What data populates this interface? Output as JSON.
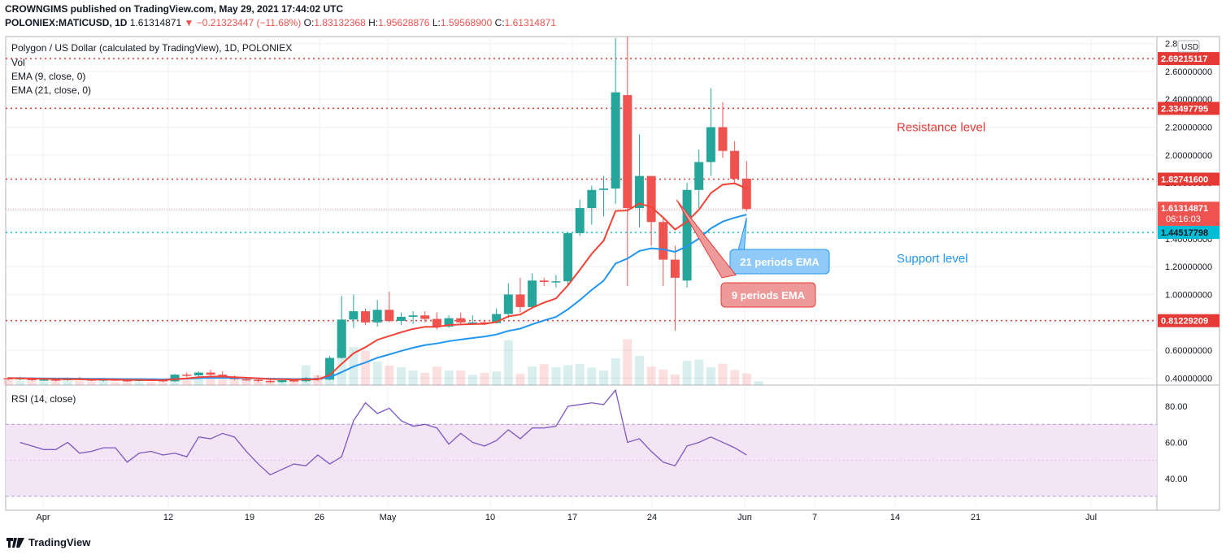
{
  "header": {
    "publisher_line": "CROWNGIMS published on TradingView.com, May 29, 2021 17:44:02 UTC",
    "symbol": "POLONIEX:MATICUSD, 1D",
    "last": "1.61314871",
    "change": "▼ −0.21323447 (−11.68%)",
    "o_label": "O:",
    "o": "1.83132368",
    "h_label": "H:",
    "h": "1.95628876",
    "l_label": "L:",
    "l": "1.59568900",
    "c_label": "C:",
    "c": "1.61314871"
  },
  "legend": {
    "title": "Polygon / US Dollar (calculated by TradingView), 1D, POLONIEX",
    "vol": "Vol",
    "ema9": "EMA (9, close, 0)",
    "ema21": "EMA (21, close, 0)",
    "rsi": "RSI (14, close)"
  },
  "currency_badge": "USD",
  "colors": {
    "up": "#26a69a",
    "down": "#ef5350",
    "ema9": "#f44336",
    "ema21": "#2196f3",
    "resistance": "#e53935",
    "support": "#00bcd4",
    "rsi_line": "#7e57c2",
    "rsi_band": "#f3e5f5"
  },
  "chart_data": [
    {
      "type": "candlestick",
      "name": "MATICUSD 1D",
      "x_ticks": [
        "Apr",
        "12",
        "19",
        "26",
        "May",
        "10",
        "17",
        "24",
        "Jun",
        "7",
        "14",
        "21",
        "Jul"
      ],
      "y_ticks": [
        "0.40000000",
        "0.60000000",
        "0.80000000",
        "1.00000000",
        "1.20000000",
        "1.40000000",
        "1.60000000",
        "1.80000000",
        "2.00000000",
        "2.20000000",
        "2.40000000",
        "2.60000000",
        "2.8"
      ],
      "ylim": [
        0.35,
        2.85
      ],
      "price_labels": {
        "resistance_top": "2.69215117",
        "resistance_upper": "2.33497795",
        "resistance_mid": "1.82741600",
        "current": "1.61314871",
        "countdown": "06:16:03",
        "support": "1.44517798",
        "support_lower": "0.81229209"
      },
      "levels": [
        2.69215117,
        2.33497795,
        1.827416,
        1.44517798,
        0.81229209
      ],
      "current_price": 1.61314871,
      "annotations": {
        "resistance": "Resistance level",
        "support": "Support level",
        "ema21_callout": "21 periods EMA",
        "ema9_callout": "9 periods EMA"
      },
      "candles": [
        {
          "o": 0.4,
          "h": 0.41,
          "l": 0.385,
          "c": 0.395
        },
        {
          "o": 0.395,
          "h": 0.41,
          "l": 0.385,
          "c": 0.4
        },
        {
          "o": 0.4,
          "h": 0.405,
          "l": 0.38,
          "c": 0.385
        },
        {
          "o": 0.385,
          "h": 0.4,
          "l": 0.38,
          "c": 0.39
        },
        {
          "o": 0.39,
          "h": 0.395,
          "l": 0.375,
          "c": 0.385
        },
        {
          "o": 0.385,
          "h": 0.405,
          "l": 0.38,
          "c": 0.395
        },
        {
          "o": 0.395,
          "h": 0.41,
          "l": 0.385,
          "c": 0.39
        },
        {
          "o": 0.39,
          "h": 0.398,
          "l": 0.378,
          "c": 0.383
        },
        {
          "o": 0.383,
          "h": 0.395,
          "l": 0.375,
          "c": 0.39
        },
        {
          "o": 0.39,
          "h": 0.4,
          "l": 0.38,
          "c": 0.385
        },
        {
          "o": 0.385,
          "h": 0.392,
          "l": 0.372,
          "c": 0.38
        },
        {
          "o": 0.38,
          "h": 0.395,
          "l": 0.375,
          "c": 0.388
        },
        {
          "o": 0.388,
          "h": 0.398,
          "l": 0.38,
          "c": 0.385
        },
        {
          "o": 0.385,
          "h": 0.39,
          "l": 0.372,
          "c": 0.378
        },
        {
          "o": 0.378,
          "h": 0.43,
          "l": 0.372,
          "c": 0.425
        },
        {
          "o": 0.425,
          "h": 0.44,
          "l": 0.405,
          "c": 0.42
        },
        {
          "o": 0.42,
          "h": 0.45,
          "l": 0.41,
          "c": 0.44
        },
        {
          "o": 0.44,
          "h": 0.46,
          "l": 0.415,
          "c": 0.425
        },
        {
          "o": 0.425,
          "h": 0.45,
          "l": 0.4,
          "c": 0.41
        },
        {
          "o": 0.41,
          "h": 0.42,
          "l": 0.385,
          "c": 0.392
        },
        {
          "o": 0.392,
          "h": 0.405,
          "l": 0.38,
          "c": 0.388
        },
        {
          "o": 0.388,
          "h": 0.395,
          "l": 0.37,
          "c": 0.38
        },
        {
          "o": 0.38,
          "h": 0.39,
          "l": 0.365,
          "c": 0.372
        },
        {
          "o": 0.372,
          "h": 0.39,
          "l": 0.365,
          "c": 0.385
        },
        {
          "o": 0.385,
          "h": 0.395,
          "l": 0.37,
          "c": 0.378
        },
        {
          "o": 0.378,
          "h": 0.41,
          "l": 0.37,
          "c": 0.402
        },
        {
          "o": 0.402,
          "h": 0.42,
          "l": 0.38,
          "c": 0.39
        },
        {
          "o": 0.39,
          "h": 0.56,
          "l": 0.385,
          "c": 0.545
        },
        {
          "o": 0.545,
          "h": 0.99,
          "l": 0.54,
          "c": 0.82
        },
        {
          "o": 0.82,
          "h": 1.0,
          "l": 0.76,
          "c": 0.88
        },
        {
          "o": 0.88,
          "h": 0.9,
          "l": 0.78,
          "c": 0.8
        },
        {
          "o": 0.8,
          "h": 0.96,
          "l": 0.77,
          "c": 0.89
        },
        {
          "o": 0.89,
          "h": 1.02,
          "l": 0.8,
          "c": 0.81
        },
        {
          "o": 0.81,
          "h": 0.87,
          "l": 0.78,
          "c": 0.84
        },
        {
          "o": 0.84,
          "h": 0.88,
          "l": 0.79,
          "c": 0.85
        },
        {
          "o": 0.85,
          "h": 0.88,
          "l": 0.8,
          "c": 0.825
        },
        {
          "o": 0.825,
          "h": 0.87,
          "l": 0.75,
          "c": 0.77
        },
        {
          "o": 0.77,
          "h": 0.85,
          "l": 0.76,
          "c": 0.83
        },
        {
          "o": 0.83,
          "h": 0.87,
          "l": 0.79,
          "c": 0.8
        },
        {
          "o": 0.8,
          "h": 0.85,
          "l": 0.78,
          "c": 0.8
        },
        {
          "o": 0.8,
          "h": 0.81,
          "l": 0.78,
          "c": 0.795
        },
        {
          "o": 0.795,
          "h": 0.9,
          "l": 0.79,
          "c": 0.86
        },
        {
          "o": 0.86,
          "h": 1.08,
          "l": 0.83,
          "c": 1.0
        },
        {
          "o": 1.0,
          "h": 1.12,
          "l": 0.87,
          "c": 0.91
        },
        {
          "o": 0.91,
          "h": 1.15,
          "l": 0.9,
          "c": 1.1
        },
        {
          "o": 1.1,
          "h": 1.12,
          "l": 1.06,
          "c": 1.09
        },
        {
          "o": 1.09,
          "h": 1.14,
          "l": 1.05,
          "c": 1.095
        },
        {
          "o": 1.095,
          "h": 1.44,
          "l": 1.06,
          "c": 1.44
        },
        {
          "o": 1.44,
          "h": 1.68,
          "l": 1.42,
          "c": 1.62
        },
        {
          "o": 1.62,
          "h": 1.78,
          "l": 1.5,
          "c": 1.75
        },
        {
          "o": 1.75,
          "h": 1.85,
          "l": 1.56,
          "c": 1.76
        },
        {
          "o": 1.76,
          "h": 2.84,
          "l": 1.65,
          "c": 2.45
        },
        {
          "o": 2.43,
          "h": 2.85,
          "l": 1.06,
          "c": 1.62
        },
        {
          "o": 1.62,
          "h": 2.15,
          "l": 1.48,
          "c": 1.85
        },
        {
          "o": 1.85,
          "h": 1.85,
          "l": 1.35,
          "c": 1.52
        },
        {
          "o": 1.52,
          "h": 1.55,
          "l": 1.06,
          "c": 1.25
        },
        {
          "o": 1.25,
          "h": 1.35,
          "l": 0.74,
          "c": 1.12
        },
        {
          "o": 1.1,
          "h": 1.8,
          "l": 1.05,
          "c": 1.75
        },
        {
          "o": 1.75,
          "h": 2.04,
          "l": 1.62,
          "c": 1.95
        },
        {
          "o": 1.95,
          "h": 2.48,
          "l": 1.85,
          "c": 2.2
        },
        {
          "o": 2.2,
          "h": 2.38,
          "l": 1.98,
          "c": 2.03
        },
        {
          "o": 2.03,
          "h": 2.1,
          "l": 1.8,
          "c": 1.83
        },
        {
          "o": 1.831,
          "h": 1.956,
          "l": 1.596,
          "c": 1.613
        }
      ],
      "volume": [
        0.1,
        0.08,
        0.08,
        0.07,
        0.07,
        0.08,
        0.08,
        0.07,
        0.07,
        0.06,
        0.06,
        0.06,
        0.06,
        0.06,
        0.12,
        0.1,
        0.13,
        0.15,
        0.12,
        0.1,
        0.09,
        0.08,
        0.08,
        0.08,
        0.12,
        0.41,
        0.2,
        0.35,
        0.75,
        0.78,
        0.7,
        0.48,
        0.4,
        0.37,
        0.3,
        0.25,
        0.38,
        0.3,
        0.3,
        0.21,
        0.25,
        0.28,
        0.92,
        0.23,
        0.38,
        0.43,
        0.37,
        0.41,
        0.43,
        0.36,
        0.3,
        0.55,
        0.94,
        0.6,
        0.38,
        0.32,
        0.22,
        0.5,
        0.52,
        0.37,
        0.44,
        0.31,
        0.24,
        0.08
      ],
      "ema9": [
        0.4,
        0.399,
        0.397,
        0.395,
        0.393,
        0.393,
        0.392,
        0.39,
        0.39,
        0.389,
        0.387,
        0.387,
        0.386,
        0.385,
        0.393,
        0.398,
        0.407,
        0.411,
        0.411,
        0.407,
        0.403,
        0.399,
        0.393,
        0.392,
        0.389,
        0.391,
        0.391,
        0.422,
        0.502,
        0.578,
        0.622,
        0.675,
        0.702,
        0.729,
        0.753,
        0.768,
        0.768,
        0.781,
        0.785,
        0.788,
        0.789,
        0.803,
        0.843,
        0.856,
        0.905,
        0.942,
        0.972,
        1.066,
        1.177,
        1.292,
        1.386,
        1.599,
        1.603,
        1.653,
        1.627,
        1.552,
        1.466,
        1.523,
        1.608,
        1.727,
        1.788,
        1.797,
        1.76
      ],
      "ema21": [
        0.4,
        0.4,
        0.399,
        0.398,
        0.397,
        0.397,
        0.396,
        0.395,
        0.395,
        0.394,
        0.393,
        0.393,
        0.392,
        0.391,
        0.394,
        0.396,
        0.4,
        0.402,
        0.402,
        0.401,
        0.4,
        0.398,
        0.396,
        0.395,
        0.393,
        0.394,
        0.394,
        0.406,
        0.443,
        0.483,
        0.512,
        0.546,
        0.57,
        0.595,
        0.618,
        0.637,
        0.649,
        0.665,
        0.677,
        0.688,
        0.698,
        0.713,
        0.739,
        0.755,
        0.786,
        0.814,
        0.839,
        0.894,
        0.96,
        1.033,
        1.099,
        1.222,
        1.258,
        1.312,
        1.331,
        1.324,
        1.306,
        1.346,
        1.401,
        1.474,
        1.523,
        1.551,
        1.573
      ],
      "rsi": [
        60,
        58,
        56,
        56,
        60,
        54,
        55,
        57,
        57,
        49,
        54,
        55,
        53,
        54,
        52,
        63,
        62,
        65,
        63,
        55,
        48,
        42,
        45,
        48,
        47,
        53,
        48,
        52,
        72,
        82,
        76,
        79,
        72,
        69,
        70,
        68,
        59,
        65,
        60,
        58,
        61,
        67,
        62,
        68,
        68,
        69,
        80,
        81,
        82,
        81,
        89,
        60,
        62,
        55,
        49,
        47,
        58,
        60,
        63,
        60,
        57,
        53
      ]
    }
  ],
  "rsi_axis": {
    "ticks": [
      "40.00",
      "60.00",
      "80.00"
    ],
    "ylim": [
      25,
      90
    ],
    "band": [
      30,
      70
    ]
  },
  "footer": {
    "brand": "TradingView"
  }
}
